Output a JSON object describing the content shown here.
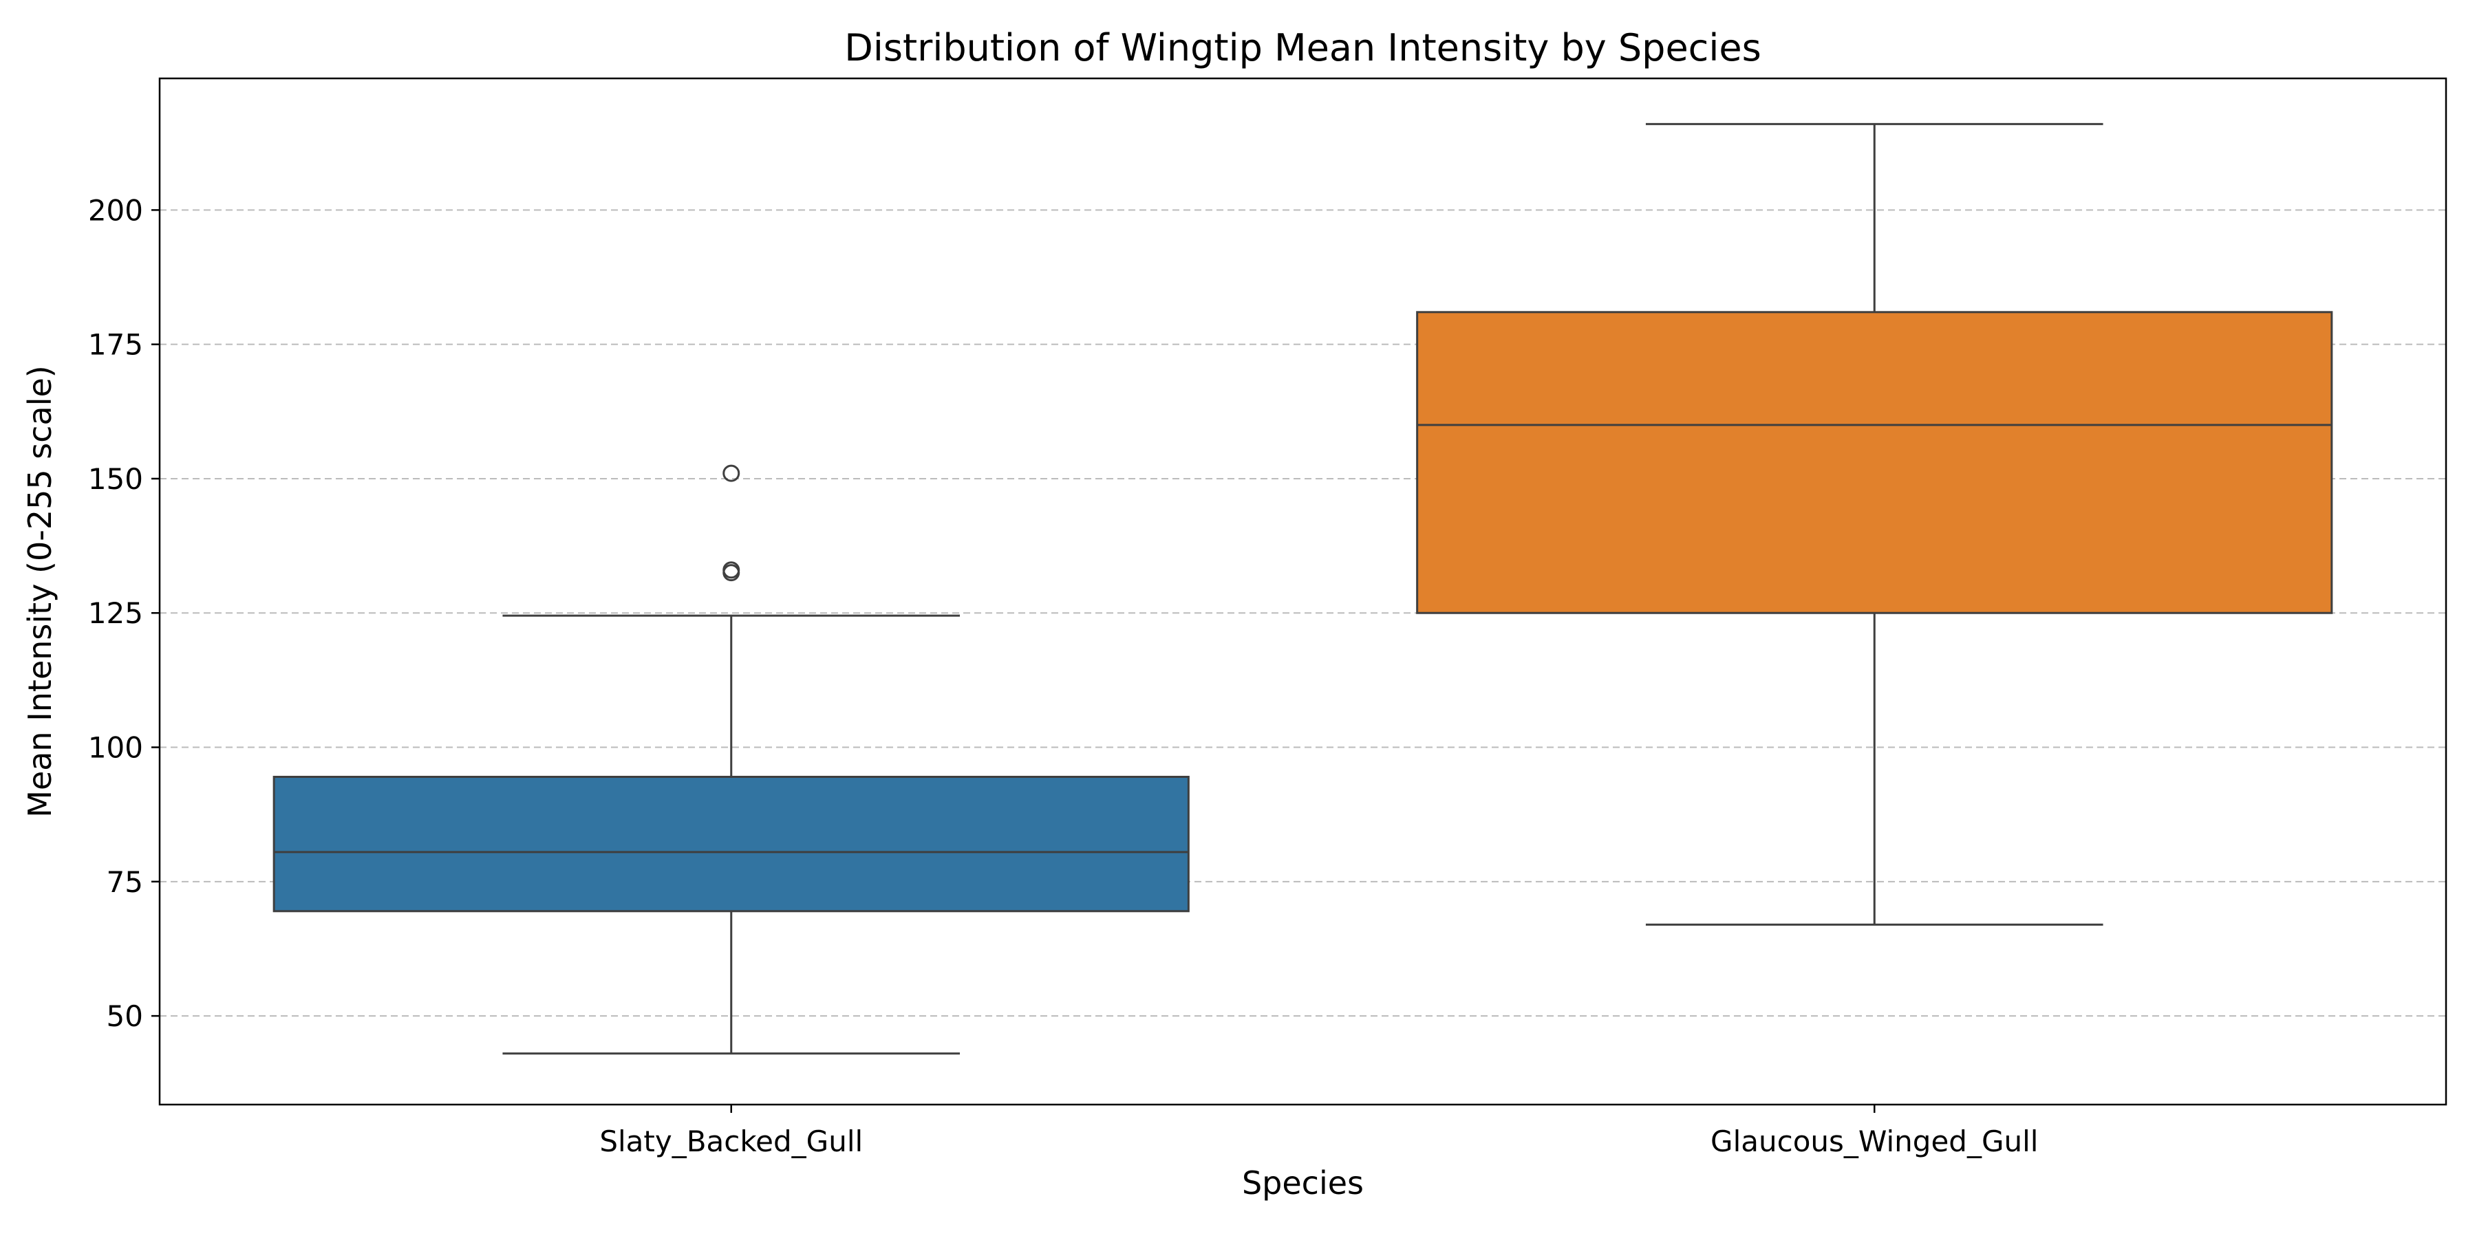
{
  "chart_data": {
    "type": "boxplot",
    "title": "Distribution of Wingtip Mean Intensity by Species",
    "xlabel": "Species",
    "ylabel": "Mean Intensity (0-255 scale)",
    "ylim": [
      33.5,
      224.5
    ],
    "yticks": [
      50,
      75,
      100,
      125,
      150,
      175,
      200
    ],
    "grid": {
      "axis": "y",
      "style": "dashed"
    },
    "legend": "none",
    "categories": [
      "Slaty_Backed_Gull",
      "Glaucous_Winged_Gull"
    ],
    "boxes": [
      {
        "category": "Slaty_Backed_Gull",
        "color": "#3274a1",
        "whisker_low": 43,
        "q1": 69.5,
        "median": 80.5,
        "q3": 94.5,
        "whisker_high": 124.5,
        "outliers": [
          133,
          132.5,
          151
        ]
      },
      {
        "category": "Glaucous_Winged_Gull",
        "color": "#e1812c",
        "whisker_low": 67,
        "q1": 125,
        "median": 160,
        "q3": 181,
        "whisker_high": 216,
        "outliers": []
      }
    ]
  }
}
